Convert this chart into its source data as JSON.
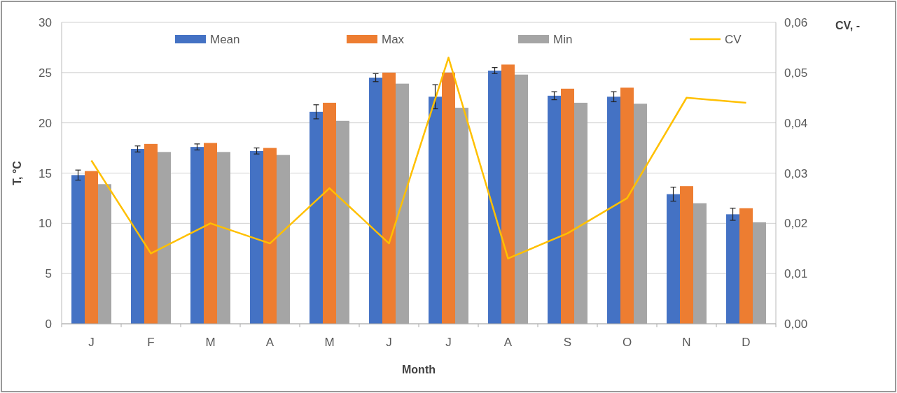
{
  "chart_data": {
    "type": "bar",
    "xlabel": "Month",
    "ylabel": "T, °C",
    "y2label": "CV, -",
    "categories": [
      "J",
      "F",
      "M",
      "A",
      "M",
      "J",
      "J",
      "A",
      "S",
      "O",
      "N",
      "D"
    ],
    "series": [
      {
        "name": "Mean",
        "color": "#4472c4",
        "values": [
          14.8,
          17.4,
          17.6,
          17.2,
          21.1,
          24.5,
          22.6,
          25.2,
          22.7,
          22.6,
          12.9,
          10.9
        ],
        "errors": [
          0.5,
          0.3,
          0.3,
          0.3,
          0.7,
          0.4,
          1.2,
          0.3,
          0.4,
          0.5,
          0.7,
          0.6
        ]
      },
      {
        "name": "Max",
        "color": "#ed7d31",
        "values": [
          15.2,
          17.9,
          18.0,
          17.5,
          22.0,
          25.0,
          25.0,
          25.8,
          23.4,
          23.5,
          13.7,
          11.5
        ]
      },
      {
        "name": "Min",
        "color": "#a5a5a5",
        "values": [
          13.9,
          17.1,
          17.1,
          16.8,
          20.2,
          23.9,
          21.5,
          24.8,
          22.0,
          21.9,
          12.0,
          10.1
        ]
      },
      {
        "name": "CV",
        "type": "line",
        "axis": "y2",
        "color": "#ffc000",
        "values": [
          0.0325,
          0.014,
          0.02,
          0.016,
          0.027,
          0.016,
          0.053,
          0.013,
          0.018,
          0.025,
          0.045,
          0.044
        ]
      }
    ],
    "ylim": [
      0,
      30
    ],
    "yticks": [
      0,
      5,
      10,
      15,
      20,
      25,
      30
    ],
    "y2lim": [
      0,
      0.06
    ],
    "y2ticks": [
      {
        "value": 0,
        "label": "0,00"
      },
      {
        "value": 0.01,
        "label": "0,01"
      },
      {
        "value": 0.02,
        "label": "0,02"
      },
      {
        "value": 0.03,
        "label": "0,03"
      },
      {
        "value": 0.04,
        "label": "0,04"
      },
      {
        "value": 0.05,
        "label": "0,05"
      },
      {
        "value": 0.06,
        "label": "0,06"
      }
    ],
    "grid": "y",
    "legend": "top",
    "marker": "none",
    "line_style": "solid"
  }
}
